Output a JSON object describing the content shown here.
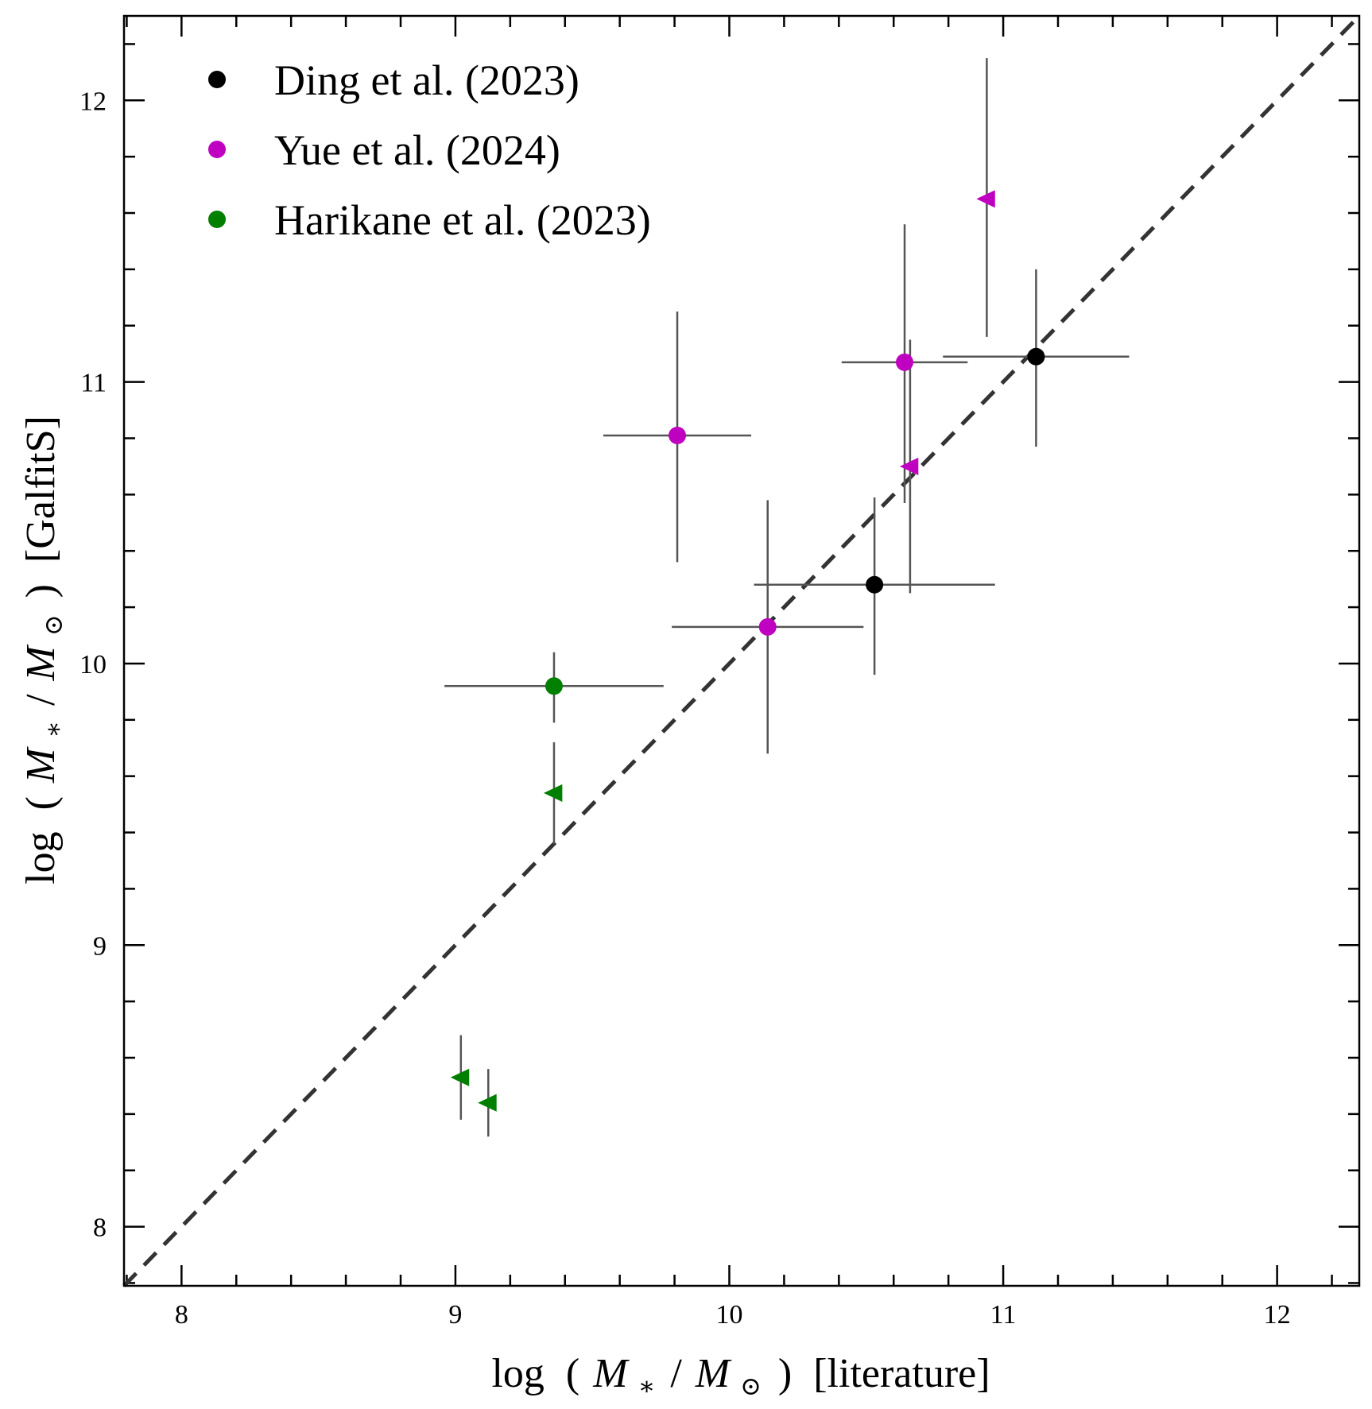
{
  "chart_data": {
    "type": "scatter",
    "title": "",
    "xlabel": {
      "prefix": "log",
      "open": "(",
      "m": "M",
      "star": "∗",
      "slash": "/",
      "msun": "M",
      "sun": "⊙",
      "close": ")",
      "suffix": "[literature]"
    },
    "ylabel": {
      "prefix": "log",
      "open": "(",
      "m": "M",
      "star": "∗",
      "slash": "/",
      "msun": "M",
      "sun": "⊙",
      "close": ")",
      "suffix": "[GalfitS]"
    },
    "xlim": [
      7.79,
      12.3
    ],
    "ylim": [
      7.79,
      12.3
    ],
    "xticks": [
      8,
      9,
      10,
      11,
      12
    ],
    "yticks": [
      8,
      9,
      10,
      11,
      12
    ],
    "xtick_labels": [
      "8",
      "9",
      "10",
      "11",
      "12"
    ],
    "ytick_labels": [
      "8",
      "9",
      "10",
      "11",
      "12"
    ],
    "minor_step": 0.2,
    "one_to_one_line": true,
    "legend_position": "top-left",
    "series": [
      {
        "name": "Ding et al. (2023)",
        "color": "#000000",
        "points": [
          {
            "x": 10.53,
            "y": 10.28,
            "xerr": [
              0.44,
              0.44
            ],
            "yerr": [
              0.32,
              0.31
            ],
            "marker": "circle"
          },
          {
            "x": 11.12,
            "y": 11.09,
            "xerr": [
              0.34,
              0.34
            ],
            "yerr": [
              0.32,
              0.31
            ],
            "marker": "circle"
          }
        ]
      },
      {
        "name": "Yue et al. (2024)",
        "color": "#c000c0",
        "points": [
          {
            "x": 9.81,
            "y": 10.81,
            "xerr": [
              0.27,
              0.27
            ],
            "yerr": [
              0.45,
              0.44
            ],
            "marker": "circle"
          },
          {
            "x": 10.14,
            "y": 10.13,
            "xerr": [
              0.35,
              0.35
            ],
            "yerr": [
              0.45,
              0.45
            ],
            "marker": "circle"
          },
          {
            "x": 10.64,
            "y": 11.07,
            "xerr": [
              0.23,
              0.23
            ],
            "yerr": [
              0.5,
              0.49
            ],
            "marker": "circle"
          },
          {
            "x": 10.66,
            "y": 10.7,
            "xerr": null,
            "yerr": [
              0.45,
              0.45
            ],
            "marker": "triangle-left"
          },
          {
            "x": 10.94,
            "y": 11.65,
            "xerr": null,
            "yerr": [
              0.49,
              0.5
            ],
            "marker": "triangle-left"
          }
        ]
      },
      {
        "name": "Harikane et al. (2023)",
        "color": "#007f00",
        "points": [
          {
            "x": 9.36,
            "y": 9.92,
            "xerr": [
              0.4,
              0.4
            ],
            "yerr": [
              0.13,
              0.12
            ],
            "marker": "circle"
          },
          {
            "x": 9.36,
            "y": 9.54,
            "xerr": null,
            "yerr": [
              0.18,
              0.18
            ],
            "marker": "triangle-left"
          },
          {
            "x": 9.02,
            "y": 8.53,
            "xerr": null,
            "yerr": [
              0.15,
              0.15
            ],
            "marker": "triangle-left"
          },
          {
            "x": 9.12,
            "y": 8.44,
            "xerr": null,
            "yerr": [
              0.12,
              0.12
            ],
            "marker": "triangle-left"
          }
        ]
      }
    ]
  }
}
